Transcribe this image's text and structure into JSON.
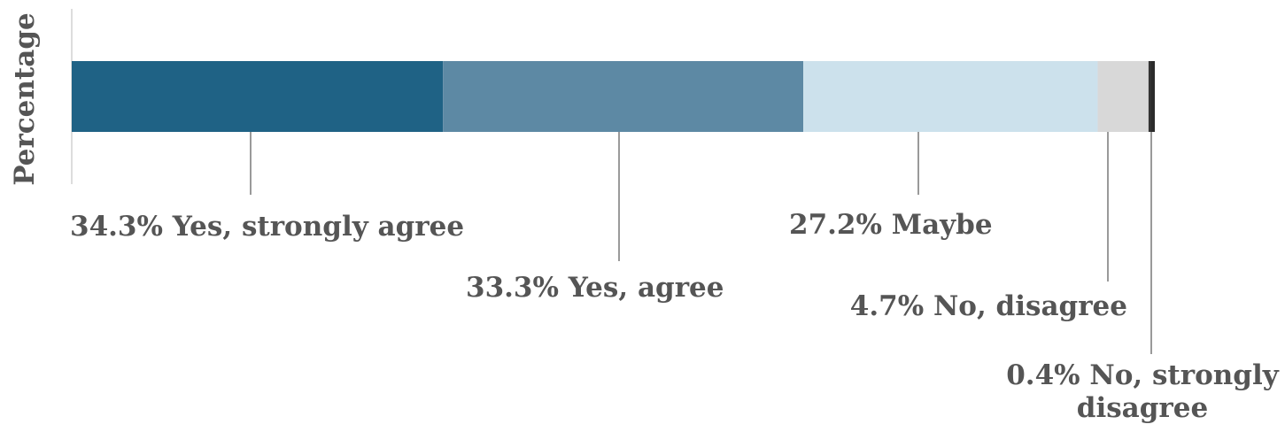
{
  "chart_data": {
    "type": "bar",
    "orientation": "horizontal",
    "stacked": true,
    "ylabel": "Percentage",
    "xlim": [
      0,
      100
    ],
    "grid": false,
    "legend": "none",
    "categories": [
      ""
    ],
    "series": [
      {
        "name": "Yes, strongly agree",
        "value": 34.3,
        "value_label": "34.3%",
        "label_lines": [
          "Yes, strongly agree"
        ],
        "color": "#1f6285"
      },
      {
        "name": "Yes, agree",
        "value": 33.3,
        "value_label": "33.3%",
        "label_lines": [
          "Yes, agree"
        ],
        "color": "#5d89a4"
      },
      {
        "name": "Maybe",
        "value": 27.2,
        "value_label": "27.2%",
        "label_lines": [
          "Maybe"
        ],
        "color": "#cce1ec"
      },
      {
        "name": "No, disagree",
        "value": 4.7,
        "value_label": "4.7%",
        "label_lines": [
          "No, disagree"
        ],
        "color": "#d8d8d8"
      },
      {
        "name": "No, strongly disagree",
        "value": 0.4,
        "value_label": "0.4%",
        "label_lines": [
          "No, strongly",
          "disagree"
        ],
        "color": "#333333"
      }
    ]
  }
}
